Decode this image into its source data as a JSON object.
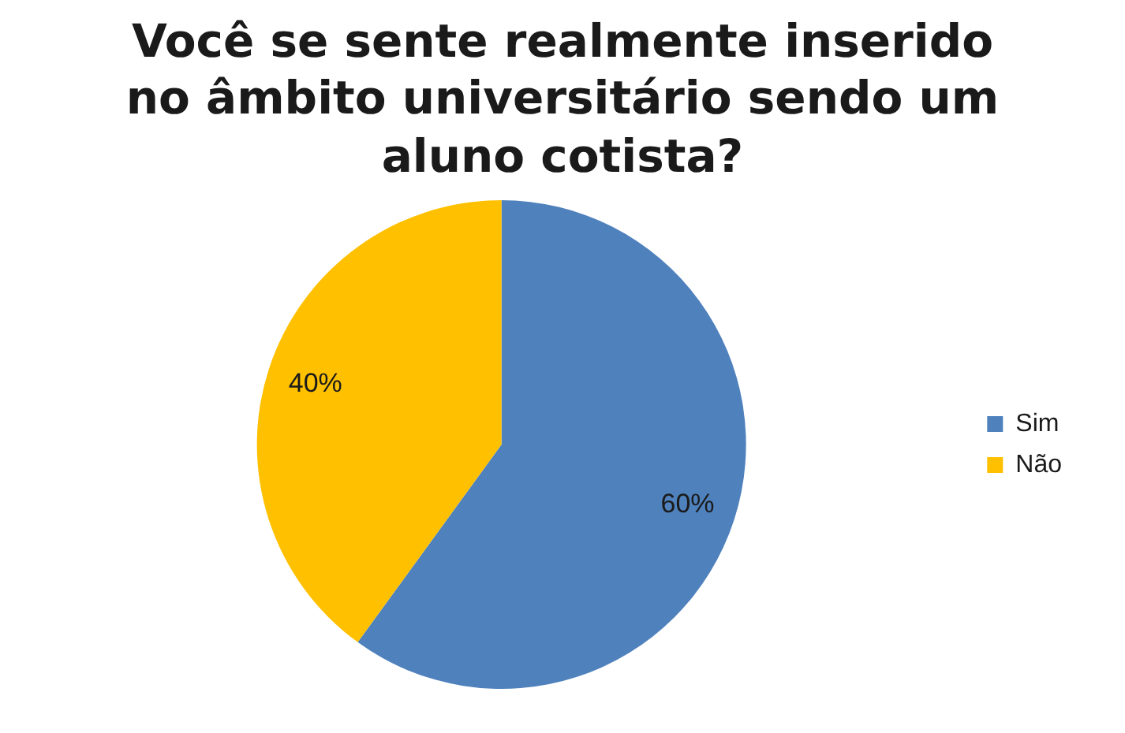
{
  "chart_data": {
    "type": "pie",
    "title": "Você se sente realmente inserido no âmbito universitário sendo um aluno cotista?",
    "categories": [
      "Sim",
      "Não"
    ],
    "values": [
      60,
      40
    ],
    "colors": [
      "#4f81bd",
      "#ffc000"
    ],
    "value_labels": [
      "60%",
      "40%"
    ],
    "legend": "right"
  }
}
